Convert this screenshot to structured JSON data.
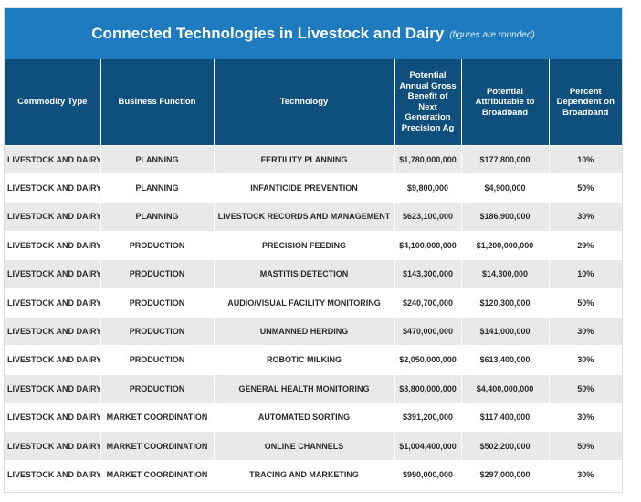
{
  "title": "Connected Technologies in Livestock and Dairy",
  "title_note": "(figures are rounded)",
  "columns": [
    "Commodity Type",
    "Business Function",
    "Technology",
    "Potential Annual Gross Benefit of Next Generation Precision Ag",
    "Potential Attributable to Broadband",
    "Percent Dependent on Broadband"
  ],
  "chart_data": {
    "type": "table",
    "title": "Connected Technologies in Livestock and Dairy",
    "rows": [
      [
        "LIVESTOCK AND DAIRY",
        "PLANNING",
        "FERTILITY PLANNING",
        "$1,780,000,000",
        "$177,800,000",
        "10%"
      ],
      [
        "LIVESTOCK AND DAIRY",
        "PLANNING",
        "INFANTICIDE PREVENTION",
        "$9,800,000",
        "$4,900,000",
        "50%"
      ],
      [
        "LIVESTOCK AND DAIRY",
        "PLANNING",
        "LIVESTOCK RECORDS AND MANAGEMENT",
        "$623,100,000",
        "$186,900,000",
        "30%"
      ],
      [
        "LIVESTOCK AND DAIRY",
        "PRODUCTION",
        "PRECISION FEEDING",
        "$4,100,000,000",
        "$1,200,000,000",
        "29%"
      ],
      [
        "LIVESTOCK AND DAIRY",
        "PRODUCTION",
        "MASTITIS DETECTION",
        "$143,300,000",
        "$14,300,000",
        "10%"
      ],
      [
        "LIVESTOCK AND DAIRY",
        "PRODUCTION",
        "AUDIO/VISUAL FACILITY MONITORING",
        "$240,700,000",
        "$120,300,000",
        "50%"
      ],
      [
        "LIVESTOCK AND DAIRY",
        "PRODUCTION",
        "UNMANNED HERDING",
        "$470,000,000",
        "$141,000,000",
        "30%"
      ],
      [
        "LIVESTOCK AND DAIRY",
        "PRODUCTION",
        "ROBOTIC MILKING",
        "$2,050,000,000",
        "$613,400,000",
        "30%"
      ],
      [
        "LIVESTOCK AND DAIRY",
        "PRODUCTION",
        "GENERAL HEALTH MONITORING",
        "$8,800,000,000",
        "$4,400,000,000",
        "50%"
      ],
      [
        "LIVESTOCK AND DAIRY",
        "MARKET COORDINATION",
        "AUTOMATED SORTING",
        "$391,200,000",
        "$117,400,000",
        "30%"
      ],
      [
        "LIVESTOCK AND DAIRY",
        "MARKET COORDINATION",
        "ONLINE CHANNELS",
        "$1,004,400,000",
        "$502,200,000",
        "50%"
      ],
      [
        "LIVESTOCK AND DAIRY",
        "MARKET COORDINATION",
        "TRACING AND MARKETING",
        "$990,000,000",
        "$297,000,000",
        "30%"
      ]
    ]
  },
  "colors": {
    "title_bg": "#1e7bbf",
    "header_bg": "#0f4f7d",
    "row_alt": "#e9e9ea"
  }
}
